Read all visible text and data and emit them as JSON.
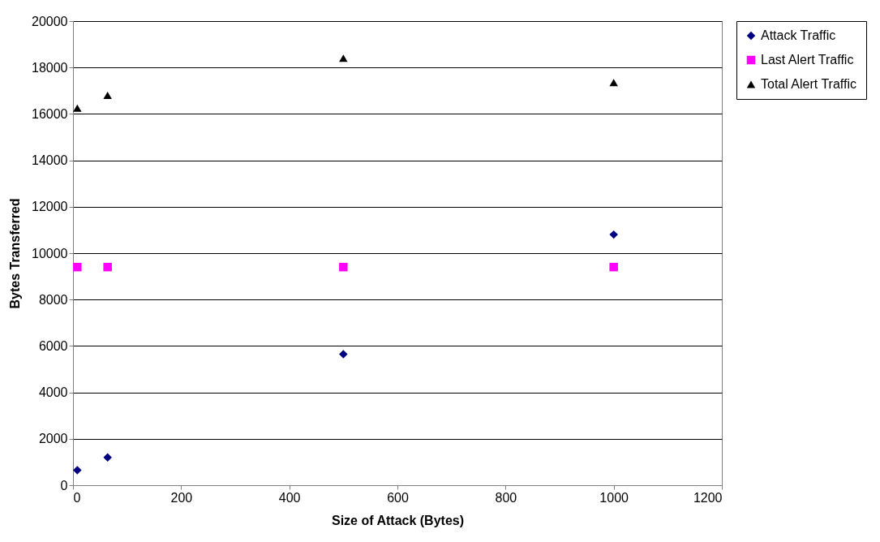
{
  "chart_data": {
    "type": "scatter",
    "xlabel": "Size of Attack (Bytes)",
    "ylabel": "Bytes Transferred",
    "x": [
      8,
      64,
      500,
      1000
    ],
    "series": [
      {
        "name": "Attack Traffic",
        "color": "#000080",
        "marker": "diamond",
        "values": [
          650,
          1200,
          5650,
          10800
        ]
      },
      {
        "name": "Last Alert Traffic",
        "color": "#ff00ff",
        "marker": "square",
        "values": [
          9400,
          9400,
          9400,
          9400
        ]
      },
      {
        "name": "Total Alert Traffic",
        "color": "#000000",
        "marker": "triangle",
        "values": [
          16250,
          16800,
          18400,
          17350
        ]
      }
    ],
    "xlim": [
      0,
      1200
    ],
    "xticks": [
      0,
      200,
      400,
      600,
      800,
      1000,
      1200
    ],
    "ylim": [
      0,
      20000
    ],
    "yticks": [
      0,
      2000,
      4000,
      6000,
      8000,
      10000,
      12000,
      14000,
      16000,
      18000,
      20000
    ],
    "grid": "y",
    "legend": "right"
  }
}
